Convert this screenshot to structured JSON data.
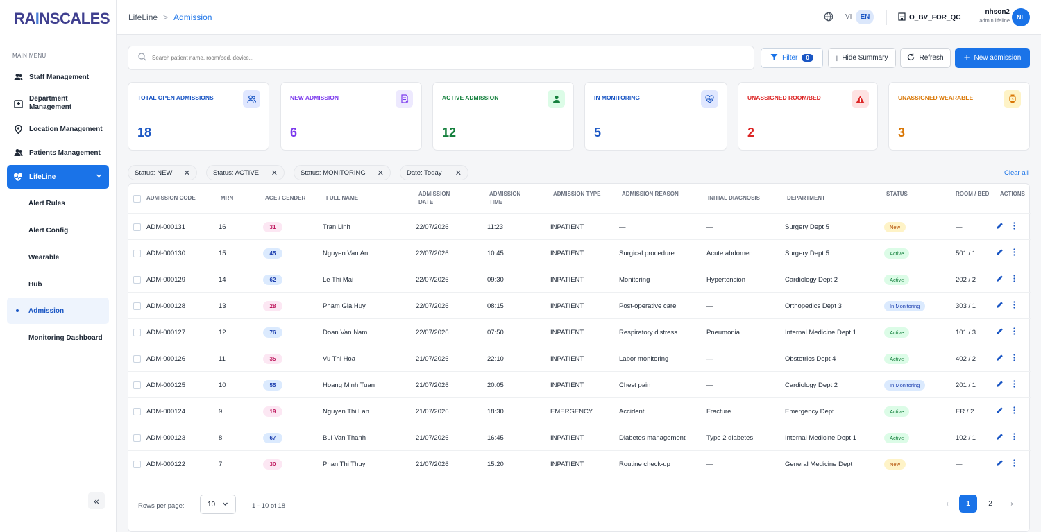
{
  "app": {
    "logo": "RAINSCALES"
  },
  "sidebar": {
    "menu_title": "MAIN MENU",
    "items": [
      {
        "label": "Staff Management",
        "icon": "users-icon"
      },
      {
        "label": "Department Management",
        "icon": "hospital-icon"
      },
      {
        "label": "Location Management",
        "icon": "map-pin-icon"
      },
      {
        "label": "Patients Management",
        "icon": "users-icon"
      },
      {
        "label": "LifeLine",
        "icon": "heartbeat-icon"
      }
    ],
    "sub_items": [
      {
        "label": "Alert Rules"
      },
      {
        "label": "Alert Config"
      },
      {
        "label": "Wearable"
      },
      {
        "label": "Hub"
      },
      {
        "label": "Admission"
      },
      {
        "label": "Monitoring Dashboard"
      }
    ],
    "collapse_label": "«"
  },
  "header": {
    "breadcrumb_root": "LifeLine",
    "breadcrumb_sep": ">",
    "breadcrumb_current": "Admission",
    "lang_vi": "VI",
    "lang_en": "EN",
    "tenant": "O_BV_FOR_QC",
    "user_name": "nhson2",
    "user_role": "admin lifeline",
    "avatar_initials": "NL"
  },
  "toolbar": {
    "search_placeholder": "Search patient name, room/bed, device...",
    "filter_label": "Filter",
    "filter_count": "0",
    "hide_summary_label": "Hide Summary",
    "refresh_label": "Refresh",
    "new_admission_label": "New admission"
  },
  "summary": [
    {
      "label": "TOTAL OPEN ADMISSIONS",
      "value": "18",
      "color": "#1a56c4",
      "icon": "users-icon"
    },
    {
      "label": "NEW ADMISSION",
      "value": "6",
      "color": "#7c3aed",
      "icon": "document-icon"
    },
    {
      "label": "ACTIVE ADMISSION",
      "value": "12",
      "color": "#15803d",
      "icon": "user-icon"
    },
    {
      "label": "IN MONITORING",
      "value": "5",
      "color": "#1a56c4",
      "icon": "heart-monitor-icon"
    },
    {
      "label": "UNASSIGNED ROOM/BED",
      "value": "2",
      "color": "#dc2626",
      "icon": "warning-icon"
    },
    {
      "label": "UNASSIGNED WEARABLE",
      "value": "3",
      "color": "#d97706",
      "icon": "watch-icon"
    }
  ],
  "filters": {
    "chips": [
      "Status: NEW",
      "Status: ACTIVE",
      "Status: MONITORING",
      "Date: Today"
    ],
    "clear_all": "Clear all"
  },
  "table": {
    "headers": [
      "ADMISSION CODE",
      "MRN",
      "AGE / GENDER",
      "FULL NAME",
      "ADMISSION DATE",
      "ADMISSION TIME",
      "ADMISSION TYPE",
      "ADMISSION REASON",
      "INITIAL DIAGNOSIS",
      "DEPARTMENT",
      "STATUS",
      "ROOM / BED",
      "ACTIONS"
    ],
    "rows": [
      {
        "code": "ADM-000131",
        "mrn": "16",
        "age": "31",
        "gender": "f",
        "name": "Tran Linh",
        "date": "22/07/2026",
        "time": "11:23",
        "type": "INPATIENT",
        "reason": "—",
        "diagnosis": "—",
        "dept": "Surgery Dept 5",
        "status": "New",
        "room": "—"
      },
      {
        "code": "ADM-000130",
        "mrn": "15",
        "age": "45",
        "gender": "m",
        "name": "Nguyen Van An",
        "date": "22/07/2026",
        "time": "10:45",
        "type": "INPATIENT",
        "reason": "Surgical procedure",
        "diagnosis": "Acute abdomen",
        "dept": "Surgery Dept 5",
        "status": "Active",
        "room": "501 / 1"
      },
      {
        "code": "ADM-000129",
        "mrn": "14",
        "age": "62",
        "gender": "m",
        "name": "Le Thi Mai",
        "date": "22/07/2026",
        "time": "09:30",
        "type": "INPATIENT",
        "reason": "Monitoring",
        "diagnosis": "Hypertension",
        "dept": "Cardiology Dept 2",
        "status": "Active",
        "room": "202 / 2"
      },
      {
        "code": "ADM-000128",
        "mrn": "13",
        "age": "28",
        "gender": "f",
        "name": "Pham Gia Huy",
        "date": "22/07/2026",
        "time": "08:15",
        "type": "INPATIENT",
        "reason": "Post-operative care",
        "diagnosis": "—",
        "dept": "Orthopedics Dept 3",
        "status": "In Monitoring",
        "room": "303 / 1"
      },
      {
        "code": "ADM-000127",
        "mrn": "12",
        "age": "76",
        "gender": "m",
        "name": "Doan Van Nam",
        "date": "22/07/2026",
        "time": "07:50",
        "type": "INPATIENT",
        "reason": "Respiratory distress",
        "diagnosis": "Pneumonia",
        "dept": "Internal Medicine Dept 1",
        "status": "Active",
        "room": "101 / 3"
      },
      {
        "code": "ADM-000126",
        "mrn": "11",
        "age": "35",
        "gender": "f",
        "name": "Vu Thi Hoa",
        "date": "21/07/2026",
        "time": "22:10",
        "type": "INPATIENT",
        "reason": "Labor monitoring",
        "diagnosis": "—",
        "dept": "Obstetrics Dept 4",
        "status": "Active",
        "room": "402 / 2"
      },
      {
        "code": "ADM-000125",
        "mrn": "10",
        "age": "55",
        "gender": "m",
        "name": "Hoang Minh Tuan",
        "date": "21/07/2026",
        "time": "20:05",
        "type": "INPATIENT",
        "reason": "Chest pain",
        "diagnosis": "—",
        "dept": "Cardiology Dept 2",
        "status": "In Monitoring",
        "room": "201 / 1"
      },
      {
        "code": "ADM-000124",
        "mrn": "9",
        "age": "19",
        "gender": "f",
        "name": "Nguyen Thi Lan",
        "date": "21/07/2026",
        "time": "18:30",
        "type": "EMERGENCY",
        "reason": "Accident",
        "diagnosis": "Fracture",
        "dept": "Emergency Dept",
        "status": "Active",
        "room": "ER / 2"
      },
      {
        "code": "ADM-000123",
        "mrn": "8",
        "age": "67",
        "gender": "m",
        "name": "Bui Van Thanh",
        "date": "21/07/2026",
        "time": "16:45",
        "type": "INPATIENT",
        "reason": "Diabetes management",
        "diagnosis": "Type 2 diabetes",
        "dept": "Internal Medicine Dept 1",
        "status": "Active",
        "room": "102 / 1"
      },
      {
        "code": "ADM-000122",
        "mrn": "7",
        "age": "30",
        "gender": "f",
        "name": "Phan Thi Thuy",
        "date": "21/07/2026",
        "time": "15:20",
        "type": "INPATIENT",
        "reason": "Routine check-up",
        "diagnosis": "—",
        "dept": "General Medicine Dept",
        "status": "New",
        "room": "—"
      }
    ]
  },
  "pagination": {
    "rows_per_page_label": "Rows per page:",
    "rows_per_page": "10",
    "range": "1 - 10 of 18",
    "pages": [
      "1",
      "2"
    ],
    "current_page": "1"
  }
}
